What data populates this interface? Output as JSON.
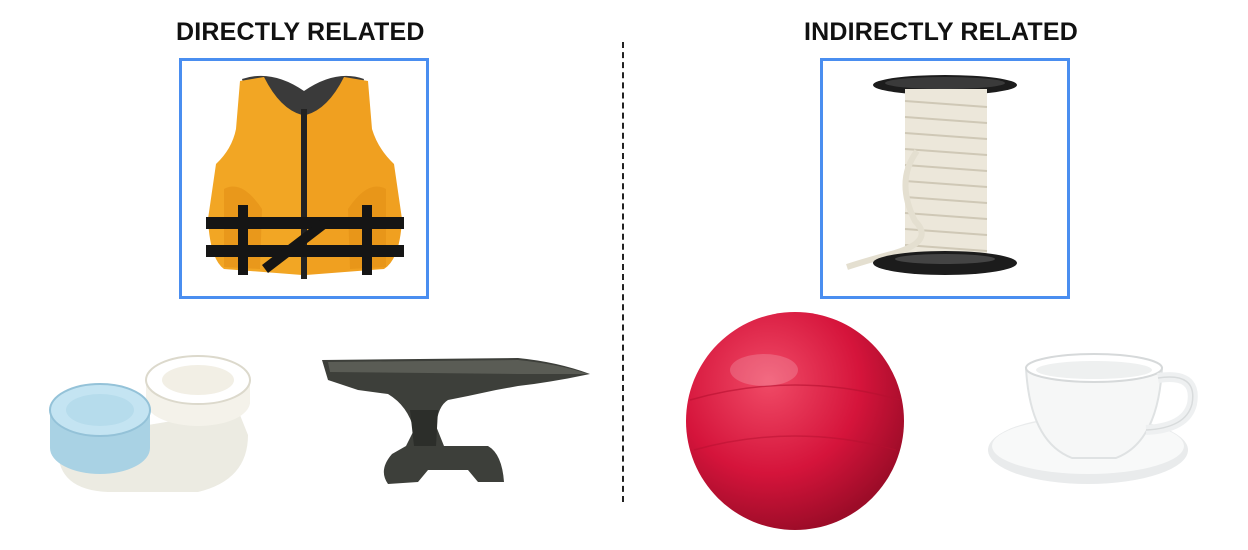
{
  "headings": {
    "left": "DIRECTLY RELATED",
    "right": "INDIRECTLY RELATED"
  },
  "colors": {
    "frame_border": "#4a8ef0",
    "heading_text": "#111111",
    "divider": "#222222"
  },
  "objects": {
    "target_left": "life-vest",
    "target_right": "rope-spool",
    "choices_left": [
      "contact-lens-case",
      "anvil"
    ],
    "choices_right": [
      "exercise-ball",
      "teacup-and-saucer"
    ]
  }
}
